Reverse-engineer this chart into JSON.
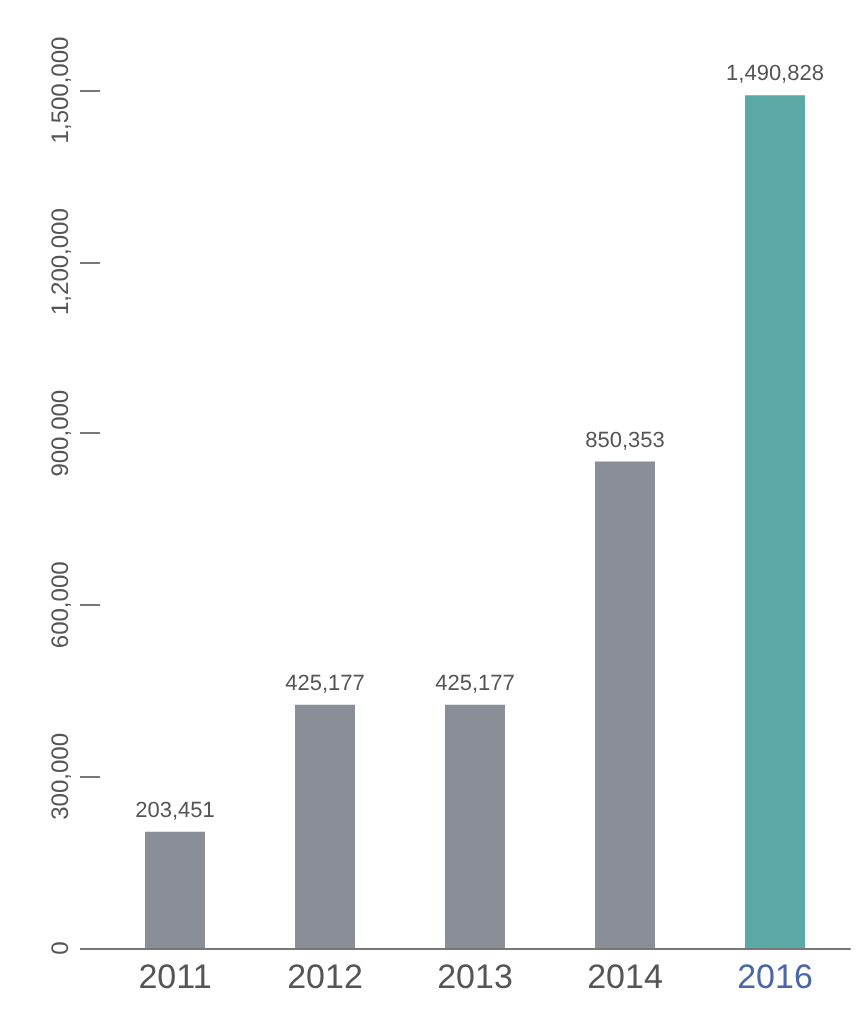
{
  "chart_data": {
    "type": "bar",
    "categories": [
      "2011",
      "2012",
      "2013",
      "2014",
      "2016"
    ],
    "values": [
      203451,
      425177,
      425177,
      850353,
      1490828
    ],
    "colors": [
      "#8a8e96",
      "#8a8e96",
      "#8a8e96",
      "#8a8e96",
      "#5aa9a6"
    ],
    "ylim": [
      0,
      1500000
    ],
    "yticks": [
      {
        "value": 0,
        "label": "0"
      },
      {
        "value": 300000,
        "label": "300,000"
      },
      {
        "value": 600000,
        "label": "600,000"
      },
      {
        "value": 900000,
        "label": "900,000"
      },
      {
        "value": 1200000,
        "label": "1,200,000"
      },
      {
        "value": 1500000,
        "label": "1,500,000"
      }
    ],
    "value_labels": [
      "203,451",
      "425,177",
      "425,177",
      "850,353",
      "1,490,828"
    ]
  }
}
